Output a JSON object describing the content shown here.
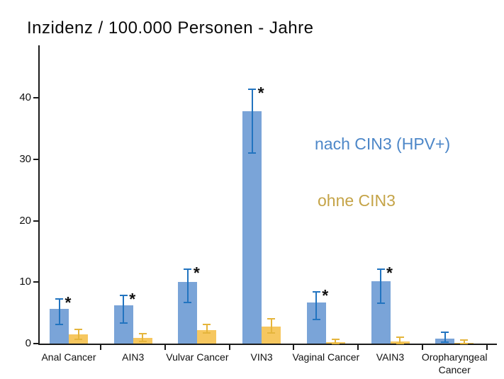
{
  "title": "Inzidenz / 100.000 Personen - Jahre",
  "legend": {
    "position": "right-middle",
    "entries": [
      {
        "label": "nach CIN3 (HPV+)",
        "color": "#4d87c8"
      },
      {
        "label": "ohne CIN3",
        "color": "#c5a448"
      }
    ]
  },
  "chart_data": {
    "type": "bar",
    "title": "Inzidenz / 100.000 Personen - Jahre",
    "xlabel": "",
    "ylabel": "Inzidenz / 100.000 Personen-Jahre",
    "ylim": [
      0,
      48
    ],
    "yticks": [
      0,
      10,
      20,
      30,
      40
    ],
    "grid": false,
    "error_bars": true,
    "significance_marker": "*",
    "categories": [
      "Anal Cancer",
      "AIN3",
      "Vulvar Cancer",
      "VIN3",
      "Vaginal Cancer",
      "VAIN3",
      "Oropharyngeal Cancer"
    ],
    "series": [
      {
        "name": "nach CIN3 (HPV+)",
        "bar_color": "#7aa4d8",
        "error_color": "#2274c0",
        "values": [
          5.7,
          6.2,
          10.0,
          37.8,
          6.7,
          10.1,
          0.8
        ],
        "ci_low": [
          3.1,
          3.3,
          6.7,
          31.0,
          3.9,
          6.6,
          0.2
        ],
        "ci_high": [
          7.3,
          7.9,
          12.1,
          41.4,
          8.4,
          12.1,
          1.8
        ],
        "significant": [
          true,
          true,
          true,
          true,
          true,
          true,
          false
        ]
      },
      {
        "name": "ohne CIN3",
        "bar_color": "#f6c75f",
        "error_color": "#e5b53c",
        "values": [
          1.5,
          0.95,
          2.2,
          2.8,
          0.2,
          0.4,
          0.15
        ],
        "ci_low": [
          0.7,
          0.3,
          1.7,
          1.7,
          0.0,
          0.0,
          0.0
        ],
        "ci_high": [
          2.3,
          1.6,
          3.1,
          4.0,
          0.65,
          1.0,
          0.6
        ],
        "significant": [
          false,
          false,
          false,
          false,
          false,
          false,
          false
        ]
      }
    ]
  }
}
